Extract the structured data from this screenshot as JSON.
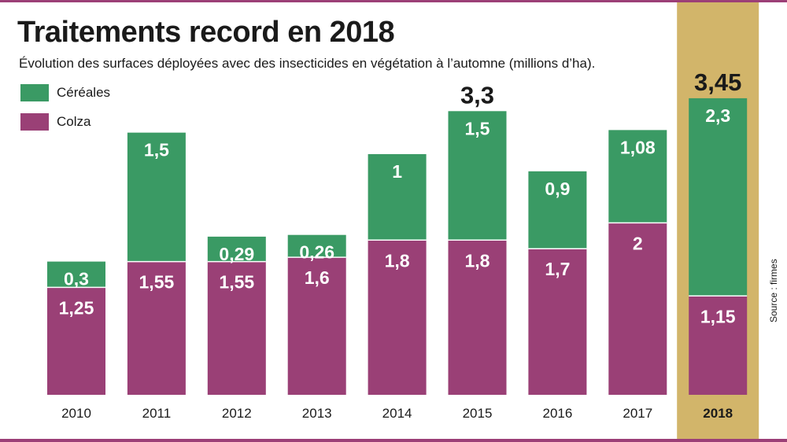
{
  "title": "Traitements record en 2018",
  "subtitle": "Évolution des surfaces déployées avec des insecticides en végétation à l’automne (millions d’ha).",
  "legend": {
    "cereales": "Céréales",
    "colza": "Colza"
  },
  "source": "Source : firmes",
  "colors": {
    "cereales": "#3a9a64",
    "colza": "#9a4076",
    "highlight": "#d2b56a",
    "rule": "#9c3f77"
  },
  "chart_data": {
    "type": "bar",
    "stacked": true,
    "title": "Traitements record en 2018",
    "subtitle": "Évolution des surfaces déployées avec des insecticides en végétation à l’automne (millions d’ha).",
    "xlabel": "",
    "ylabel": "millions d’ha",
    "ylim": [
      0,
      3.5
    ],
    "grid": false,
    "legend_position": "top-left",
    "highlight_category": "2018",
    "categories": [
      "2010",
      "2011",
      "2012",
      "2013",
      "2014",
      "2015",
      "2016",
      "2017",
      "2018"
    ],
    "series": [
      {
        "name": "Colza",
        "values": [
          1.25,
          1.55,
          1.55,
          1.6,
          1.8,
          1.8,
          1.7,
          2,
          1.15
        ],
        "labels": [
          "1,25",
          "1,55",
          "1,55",
          "1,6",
          "1,8",
          "1,8",
          "1,7",
          "2",
          "1,15"
        ]
      },
      {
        "name": "Céréales",
        "values": [
          0.3,
          1.5,
          0.29,
          0.26,
          1,
          1.5,
          0.9,
          1.08,
          2.3
        ],
        "labels": [
          "0,3",
          "1,5",
          "0,29",
          "0,26",
          "1",
          "1,5",
          "0,9",
          "1,08",
          "2,3"
        ]
      }
    ],
    "annotations": [
      {
        "category": "2015",
        "text": "3,3"
      },
      {
        "category": "2018",
        "text": "3,45"
      }
    ]
  }
}
